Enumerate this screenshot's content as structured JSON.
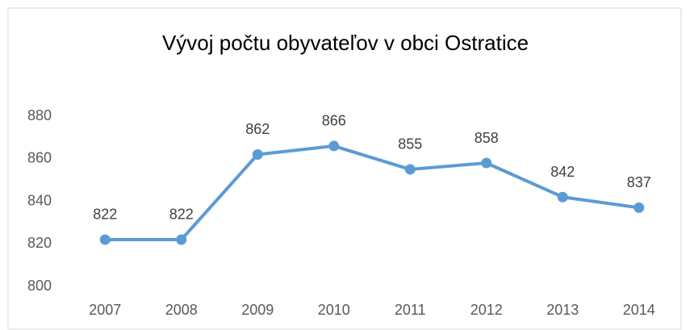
{
  "chart_data": {
    "type": "line",
    "title": "Vývoj počtu obyvateľov v obci Ostratice",
    "categories": [
      "2007",
      "2008",
      "2009",
      "2010",
      "2011",
      "2012",
      "2013",
      "2014"
    ],
    "values": [
      822,
      822,
      862,
      866,
      855,
      858,
      842,
      837
    ],
    "color": "#5b9bd5",
    "ylim": [
      800,
      880
    ],
    "yticks": [
      800,
      820,
      840,
      860,
      880
    ],
    "grid": false
  }
}
